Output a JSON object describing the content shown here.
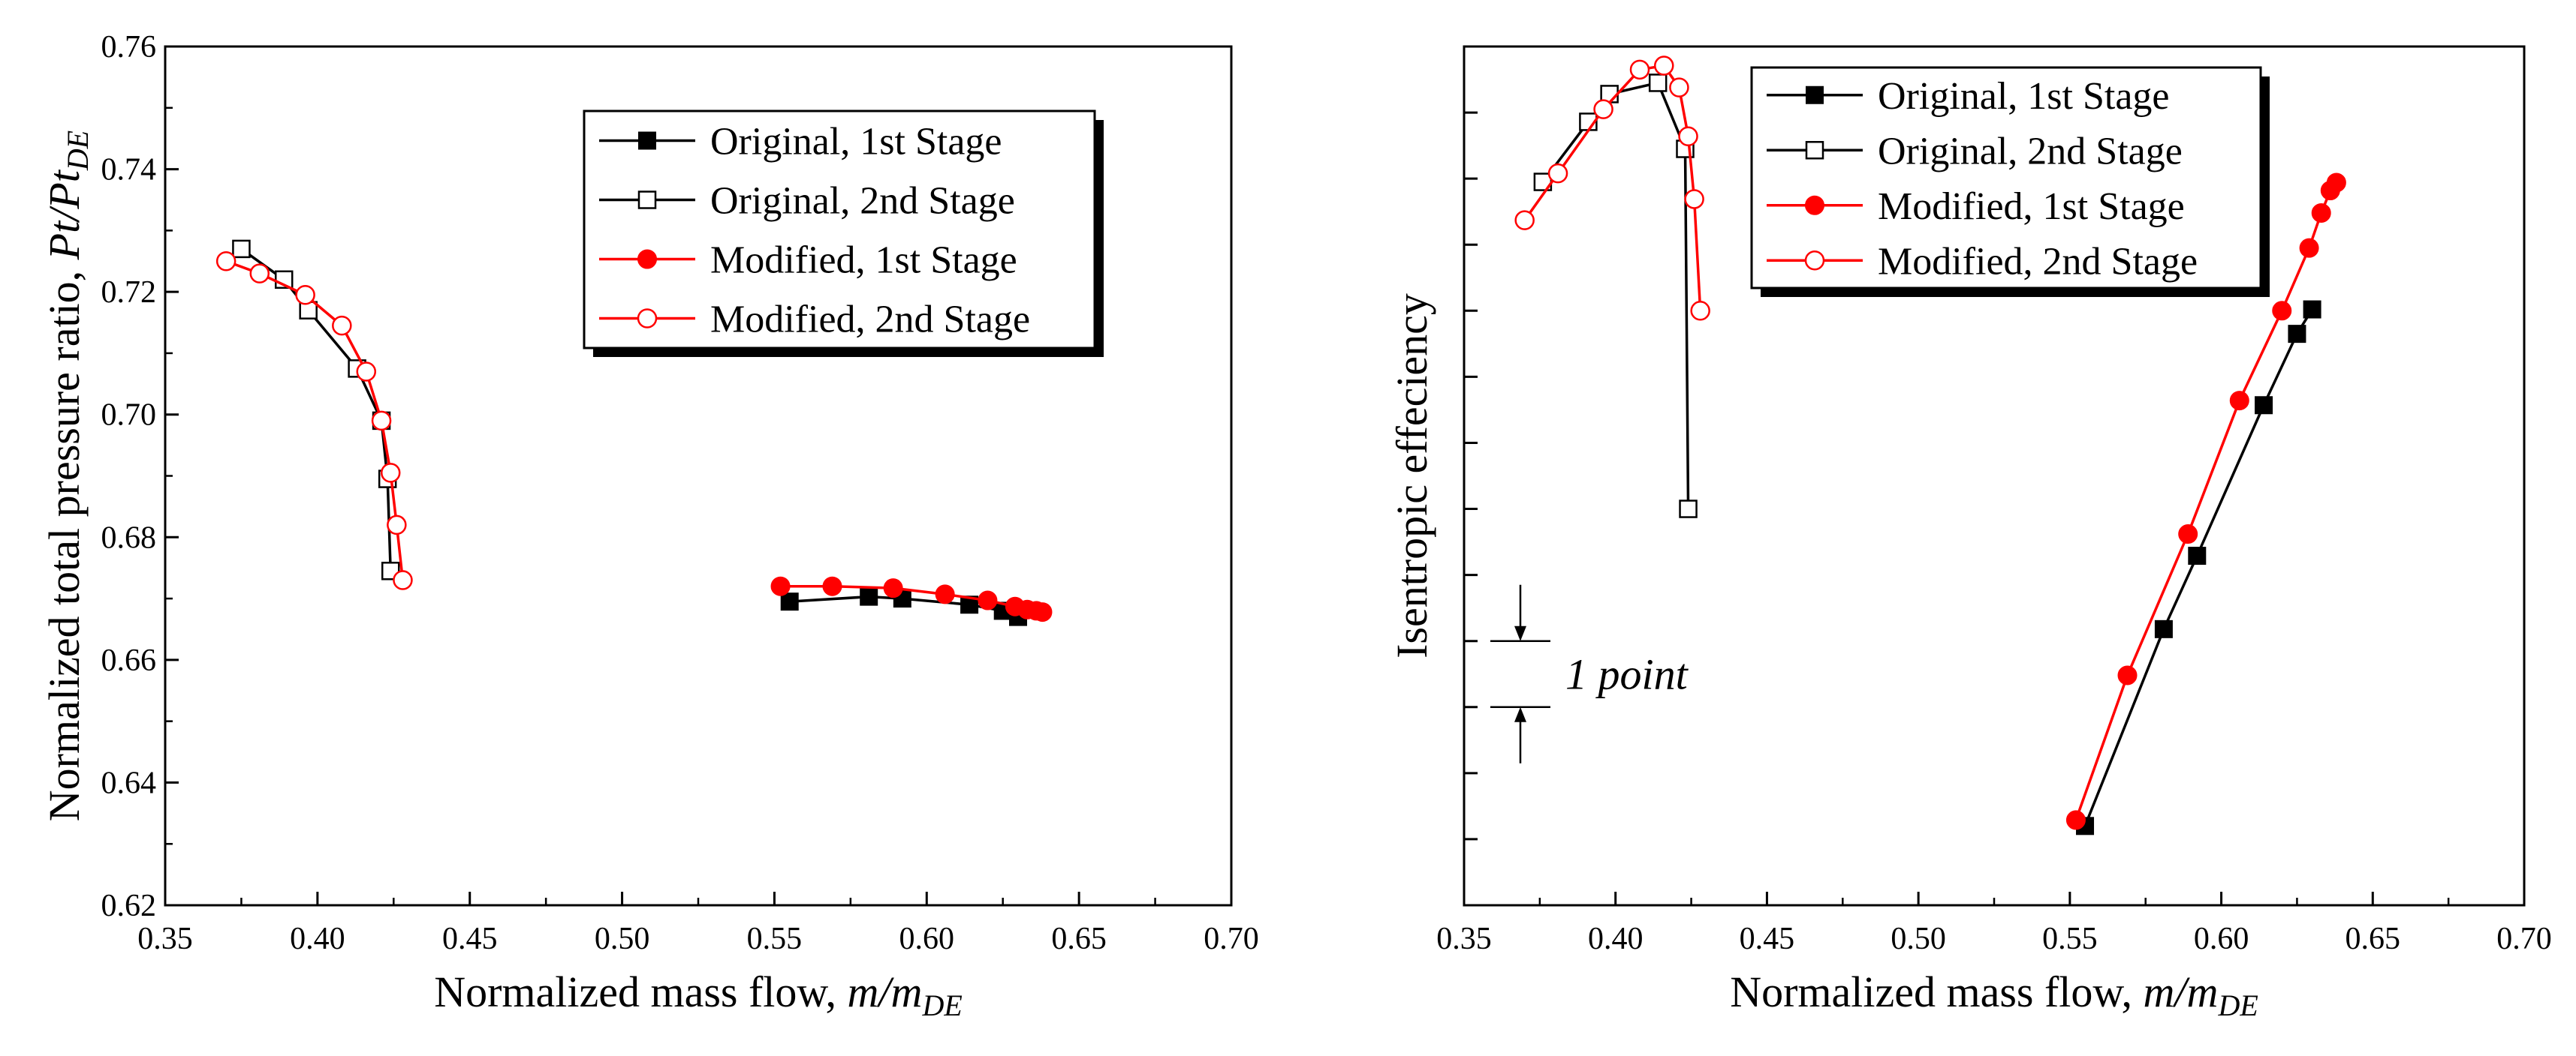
{
  "chart_data": [
    {
      "type": "line",
      "ylabel": "Normalized total pressure ratio, ",
      "ylabel_var": "Pt/Pt",
      "ylabel_sub": "DE",
      "xlabel": "Normalized mass flow, ",
      "xlabel_var": "m/m",
      "xlabel_sub": "DE",
      "xlim": [
        0.35,
        0.7
      ],
      "ylim": [
        0.62,
        0.76
      ],
      "xticks": [
        "0.35",
        "0.40",
        "0.45",
        "0.50",
        "0.55",
        "0.60",
        "0.65",
        "0.70"
      ],
      "yticks": [
        "0.62",
        "0.64",
        "0.66",
        "0.68",
        "0.70",
        "0.72",
        "0.74",
        "0.76"
      ],
      "legend_position": "top-right",
      "series": [
        {
          "name": "Original, 1st Stage",
          "color": "#000000",
          "marker": "square-filled",
          "x": [
            0.555,
            0.581,
            0.592,
            0.614,
            0.625,
            0.63
          ],
          "y": [
            0.6695,
            0.6703,
            0.67,
            0.669,
            0.668,
            0.667
          ]
        },
        {
          "name": "Original, 2nd Stage",
          "color": "#000000",
          "marker": "square-open",
          "x": [
            0.375,
            0.389,
            0.397,
            0.413,
            0.421,
            0.423,
            0.424
          ],
          "y": [
            0.727,
            0.722,
            0.717,
            0.7075,
            0.699,
            0.6895,
            0.6745
          ]
        },
        {
          "name": "Modified, 1st Stage",
          "color": "#ff0000",
          "marker": "circle-filled",
          "x": [
            0.552,
            0.569,
            0.589,
            0.606,
            0.62,
            0.629,
            0.633,
            0.636,
            0.638
          ],
          "y": [
            0.672,
            0.672,
            0.6717,
            0.6707,
            0.6697,
            0.6687,
            0.6682,
            0.668,
            0.6678
          ]
        },
        {
          "name": "Modified, 2nd Stage",
          "color": "#ff0000",
          "marker": "circle-open",
          "x": [
            0.37,
            0.381,
            0.396,
            0.408,
            0.416,
            0.421,
            0.424,
            0.426,
            0.428
          ],
          "y": [
            0.725,
            0.723,
            0.7195,
            0.7145,
            0.707,
            0.699,
            0.6905,
            0.682,
            0.673
          ]
        }
      ]
    },
    {
      "type": "line",
      "ylabel": "Isentropic effeciency",
      "xlabel": "Normalized mass flow, ",
      "xlabel_var": "m/m",
      "xlabel_sub": "DE",
      "xlim": [
        0.35,
        0.7
      ],
      "ylim": [
        0,
        13
      ],
      "yticks_labeled": false,
      "xticks": [
        "0.35",
        "0.40",
        "0.45",
        "0.50",
        "0.55",
        "0.60",
        "0.65",
        "0.70"
      ],
      "y_tick_count": 13,
      "annotation": "1 point",
      "annotation_value_points": 1,
      "legend_position": "top-center",
      "series": [
        {
          "name": "Original, 1st Stage",
          "color": "#000000",
          "marker": "square-filled",
          "x": [
            0.555,
            0.581,
            0.592,
            0.614,
            0.625,
            0.63
          ],
          "y": [
            1.2,
            4.18,
            5.29,
            7.57,
            8.65,
            9.02
          ]
        },
        {
          "name": "Original, 2nd Stage",
          "color": "#000000",
          "marker": "square-open",
          "x": [
            0.376,
            0.391,
            0.398,
            0.414,
            0.423,
            0.424
          ],
          "y": [
            10.95,
            11.86,
            12.28,
            12.45,
            11.45,
            6.0
          ]
        },
        {
          "name": "Modified, 1st Stage",
          "color": "#ff0000",
          "marker": "circle-filled",
          "x": [
            0.552,
            0.569,
            0.589,
            0.606,
            0.62,
            0.629,
            0.633,
            0.636,
            0.638
          ],
          "y": [
            1.29,
            3.48,
            5.62,
            7.64,
            9.0,
            9.95,
            10.48,
            10.82,
            10.94
          ]
        },
        {
          "name": "Modified, 2nd Stage",
          "color": "#ff0000",
          "marker": "circle-open",
          "x": [
            0.37,
            0.381,
            0.396,
            0.408,
            0.416,
            0.421,
            0.424,
            0.426,
            0.428
          ],
          "y": [
            10.37,
            11.08,
            12.05,
            12.65,
            12.71,
            12.38,
            11.64,
            10.69,
            9.0
          ]
        }
      ]
    }
  ]
}
